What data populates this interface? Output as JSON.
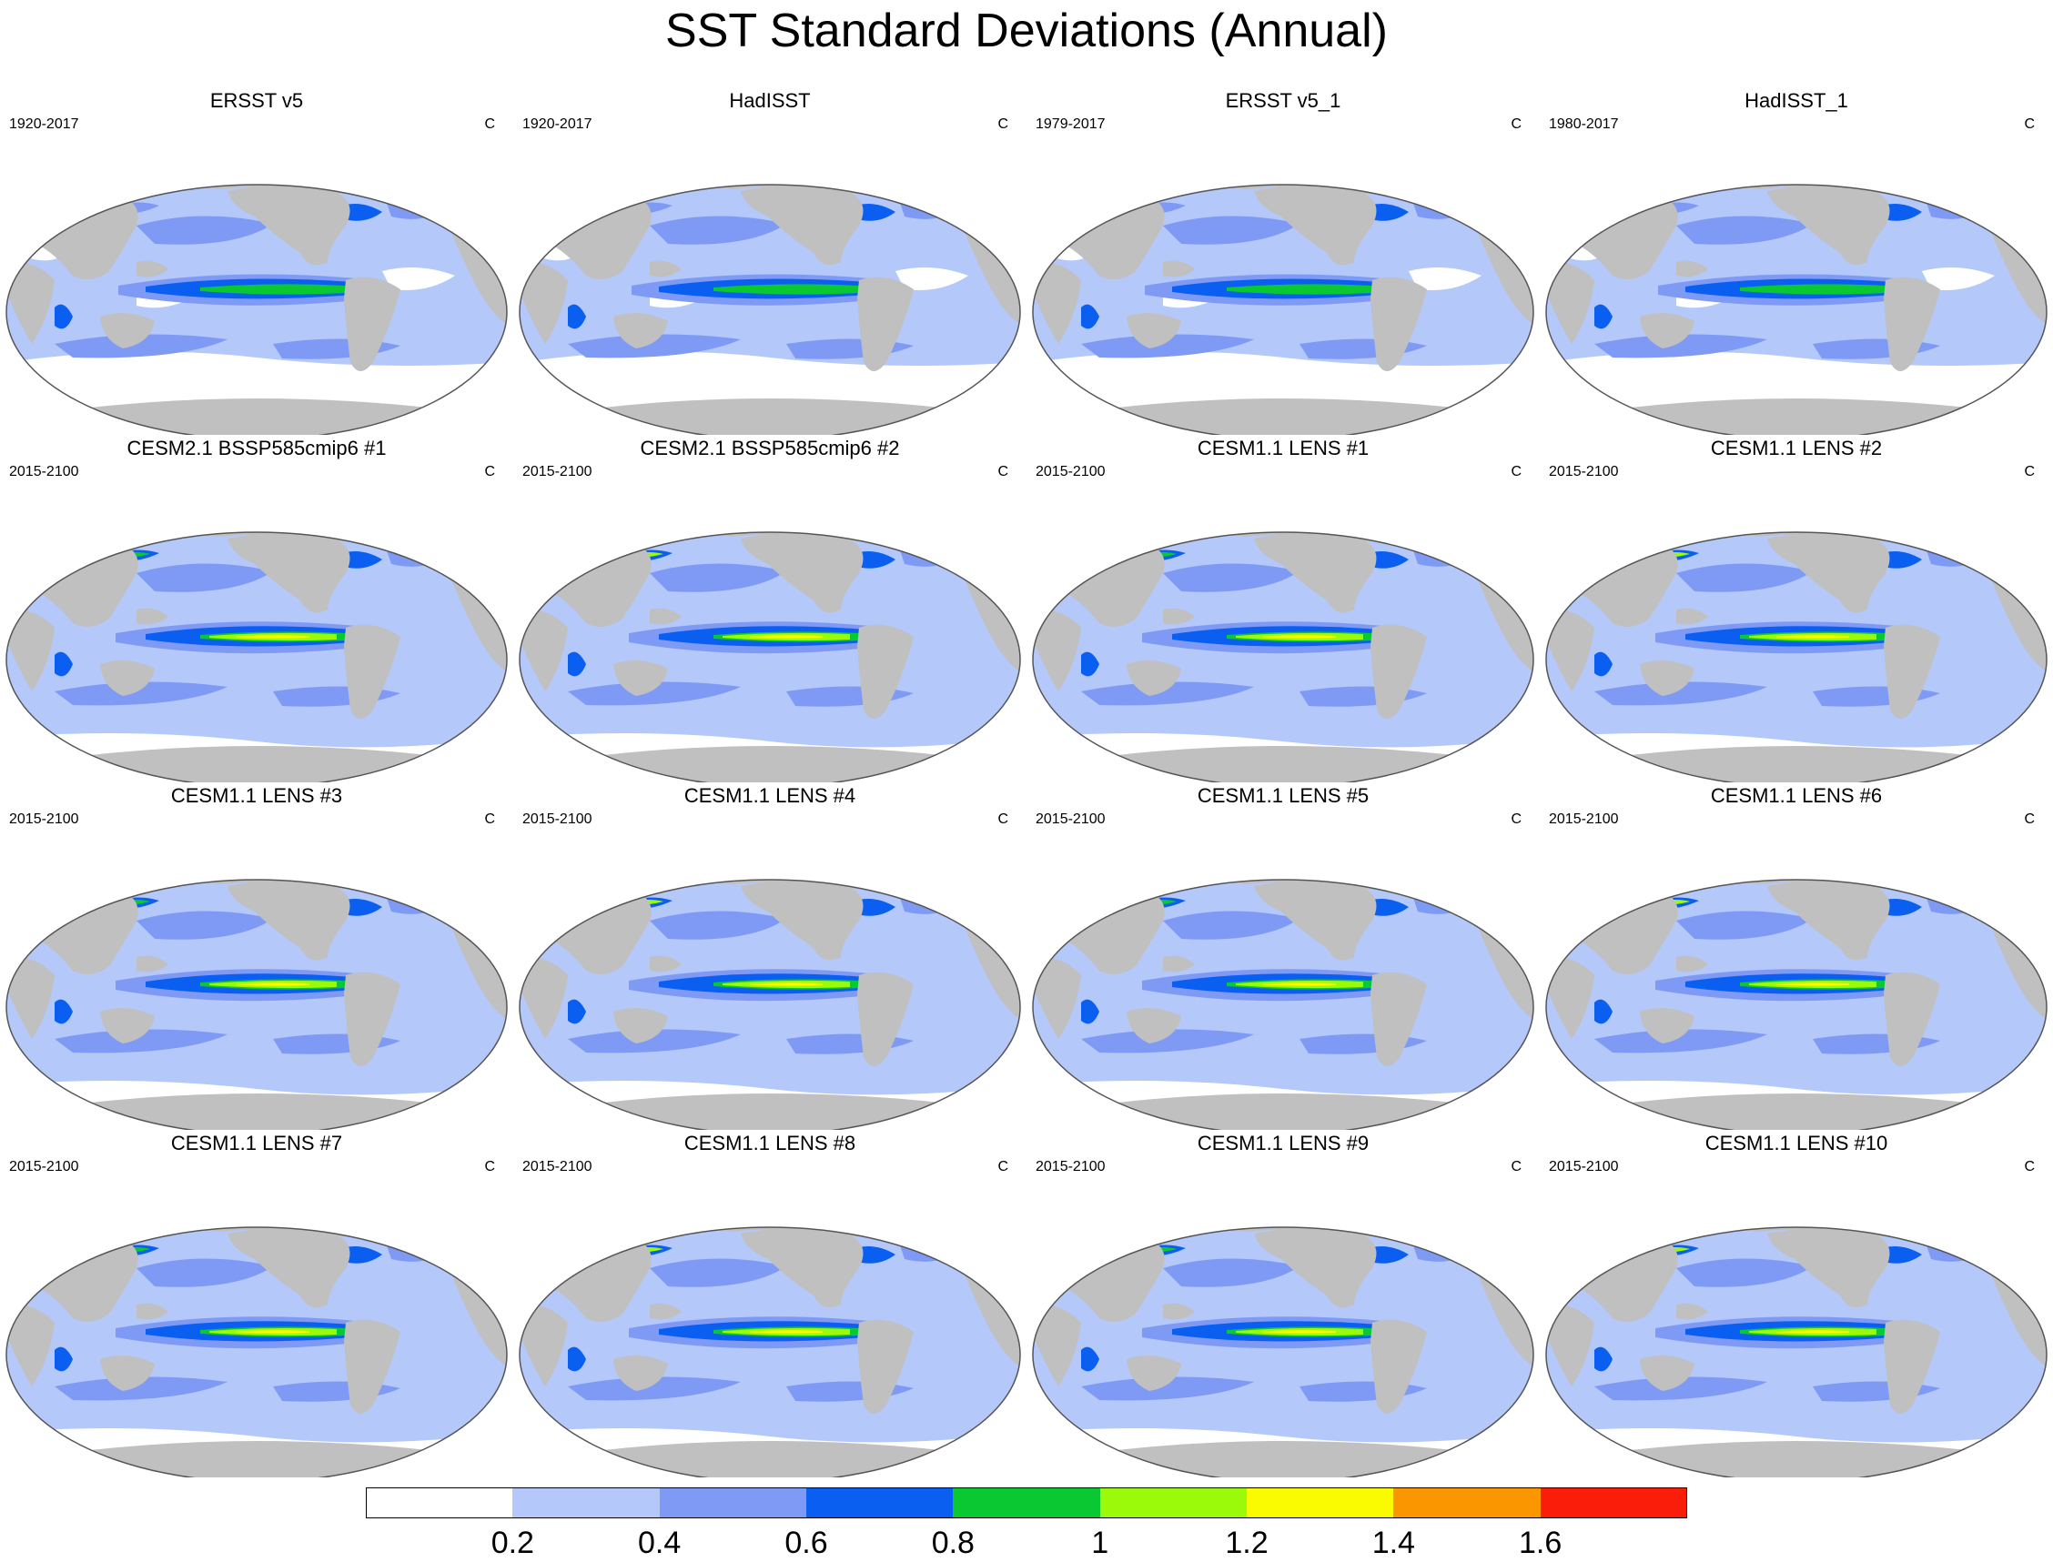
{
  "title": "SST Standard Deviations (Annual)",
  "panels": [
    {
      "title": "ERSST v5",
      "years": "1920-2017",
      "units": "C"
    },
    {
      "title": "HadISST",
      "years": "1920-2017",
      "units": "C"
    },
    {
      "title": "ERSST v5_1",
      "years": "1979-2017",
      "units": "C"
    },
    {
      "title": "HadISST_1",
      "years": "1980-2017",
      "units": "C"
    },
    {
      "title": "CESM2.1 BSSP585cmip6 #1",
      "years": "2015-2100",
      "units": "C"
    },
    {
      "title": "CESM2.1 BSSP585cmip6 #2",
      "years": "2015-2100",
      "units": "C"
    },
    {
      "title": "CESM1.1 LENS #1",
      "years": "2015-2100",
      "units": "C"
    },
    {
      "title": "CESM1.1 LENS #2",
      "years": "2015-2100",
      "units": "C"
    },
    {
      "title": "CESM1.1 LENS #3",
      "years": "2015-2100",
      "units": "C"
    },
    {
      "title": "CESM1.1 LENS #4",
      "years": "2015-2100",
      "units": "C"
    },
    {
      "title": "CESM1.1 LENS #5",
      "years": "2015-2100",
      "units": "C"
    },
    {
      "title": "CESM1.1 LENS #6",
      "years": "2015-2100",
      "units": "C"
    },
    {
      "title": "CESM1.1 LENS #7",
      "years": "2015-2100",
      "units": "C"
    },
    {
      "title": "CESM1.1 LENS #8",
      "years": "2015-2100",
      "units": "C"
    },
    {
      "title": "CESM1.1 LENS #9",
      "years": "2015-2100",
      "units": "C"
    },
    {
      "title": "CESM1.1 LENS #10",
      "years": "2015-2100",
      "units": "C"
    }
  ],
  "colorbar": {
    "colors": [
      "#ffffff",
      "#b4c8fa",
      "#7f9af5",
      "#0a5ff0",
      "#0ac832",
      "#9bfa0a",
      "#fafa00",
      "#fa9600",
      "#fa1e0a"
    ],
    "labels": [
      "0.2",
      "0.4",
      "0.6",
      "0.8",
      "1",
      "1.2",
      "1.4",
      "1.6"
    ]
  },
  "map_colors": {
    "land": "#c0c0c0",
    "ocean_base": "#b4c8fa",
    "coast": "#555555"
  }
}
